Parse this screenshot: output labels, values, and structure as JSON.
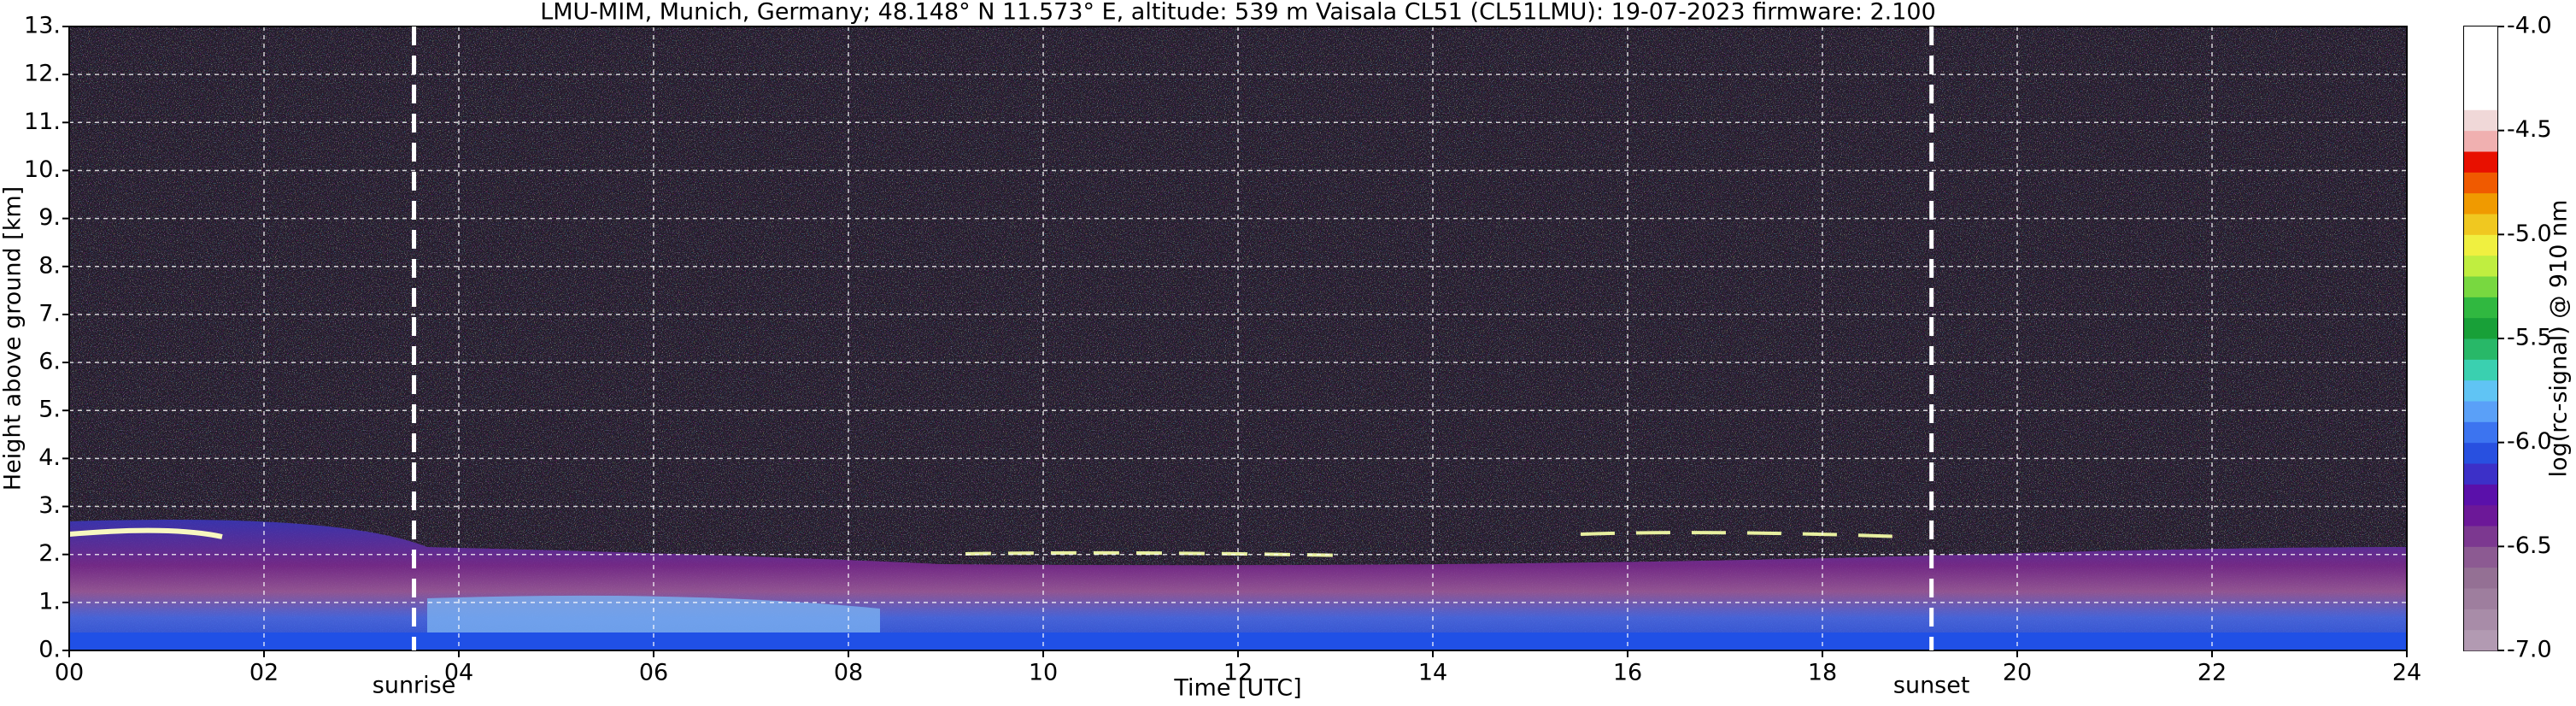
{
  "chart_data": {
    "type": "heatmap",
    "title": "LMU-MIM, Munich, Germany; 48.148° N 11.573° E, altitude: 539 m    Vaisala CL51 (CL51LMU): 19-07-2023    firmware: 2.100",
    "xlabel": "Time [UTC]",
    "ylabel": "Height above ground [km]",
    "xlim": [
      0,
      24
    ],
    "ylim": [
      0,
      13
    ],
    "xticks": [
      {
        "value": 0,
        "label": "00"
      },
      {
        "value": 2,
        "label": "02"
      },
      {
        "value": 4,
        "label": "04"
      },
      {
        "value": 6,
        "label": "06"
      },
      {
        "value": 8,
        "label": "08"
      },
      10,
      12,
      14,
      16,
      18,
      20,
      22,
      24
    ],
    "yticks": [
      {
        "value": 0,
        "label": "0."
      },
      {
        "value": 1,
        "label": "1."
      },
      {
        "value": 2,
        "label": "2."
      },
      {
        "value": 3,
        "label": "3."
      },
      {
        "value": 4,
        "label": "4."
      },
      {
        "value": 5,
        "label": "5."
      },
      {
        "value": 6,
        "label": "6."
      },
      {
        "value": 7,
        "label": "7."
      },
      {
        "value": 8,
        "label": "8."
      },
      {
        "value": 9,
        "label": "9."
      },
      {
        "value": 10,
        "label": "10."
      },
      {
        "value": 11,
        "label": "11."
      },
      {
        "value": 12,
        "label": "12."
      },
      {
        "value": 13,
        "label": "13."
      }
    ],
    "grid": true,
    "annotations": [
      {
        "text": "sunrise",
        "x": 3.54
      },
      {
        "text": "sunset",
        "x": 19.12
      }
    ],
    "colorbar": {
      "label": "log(rc-signal) @ 910 nm",
      "clim": [
        -7,
        -4
      ],
      "ticks": [
        {
          "value": -7,
          "label": "-7.0"
        },
        {
          "value": -6.5,
          "label": "-6.5"
        },
        {
          "value": -6,
          "label": "-6.0"
        },
        {
          "value": -5.5,
          "label": "-5.5"
        },
        {
          "value": -5,
          "label": "-5.0"
        },
        {
          "value": -4.5,
          "label": "-4.5"
        },
        {
          "value": -4,
          "label": "-4.0"
        }
      ],
      "colors": [
        "#b29ab2",
        "#a88ca8",
        "#9e7e9e",
        "#947094",
        "#8c5a92",
        "#7c3890",
        "#6c1898",
        "#5a10aa",
        "#3c30c8",
        "#2850e0",
        "#3c74f0",
        "#5aa0f8",
        "#60c4f4",
        "#3ad0b0",
        "#28b868",
        "#18a038",
        "#30b840",
        "#78d840",
        "#c0ee40",
        "#f0f040",
        "#f0c820",
        "#f09a00",
        "#f05a00",
        "#e81000",
        "#f0b0b0",
        "#f0d8d8",
        "#ffffff",
        "#ffffff",
        "#ffffff",
        "#ffffff"
      ]
    }
  }
}
